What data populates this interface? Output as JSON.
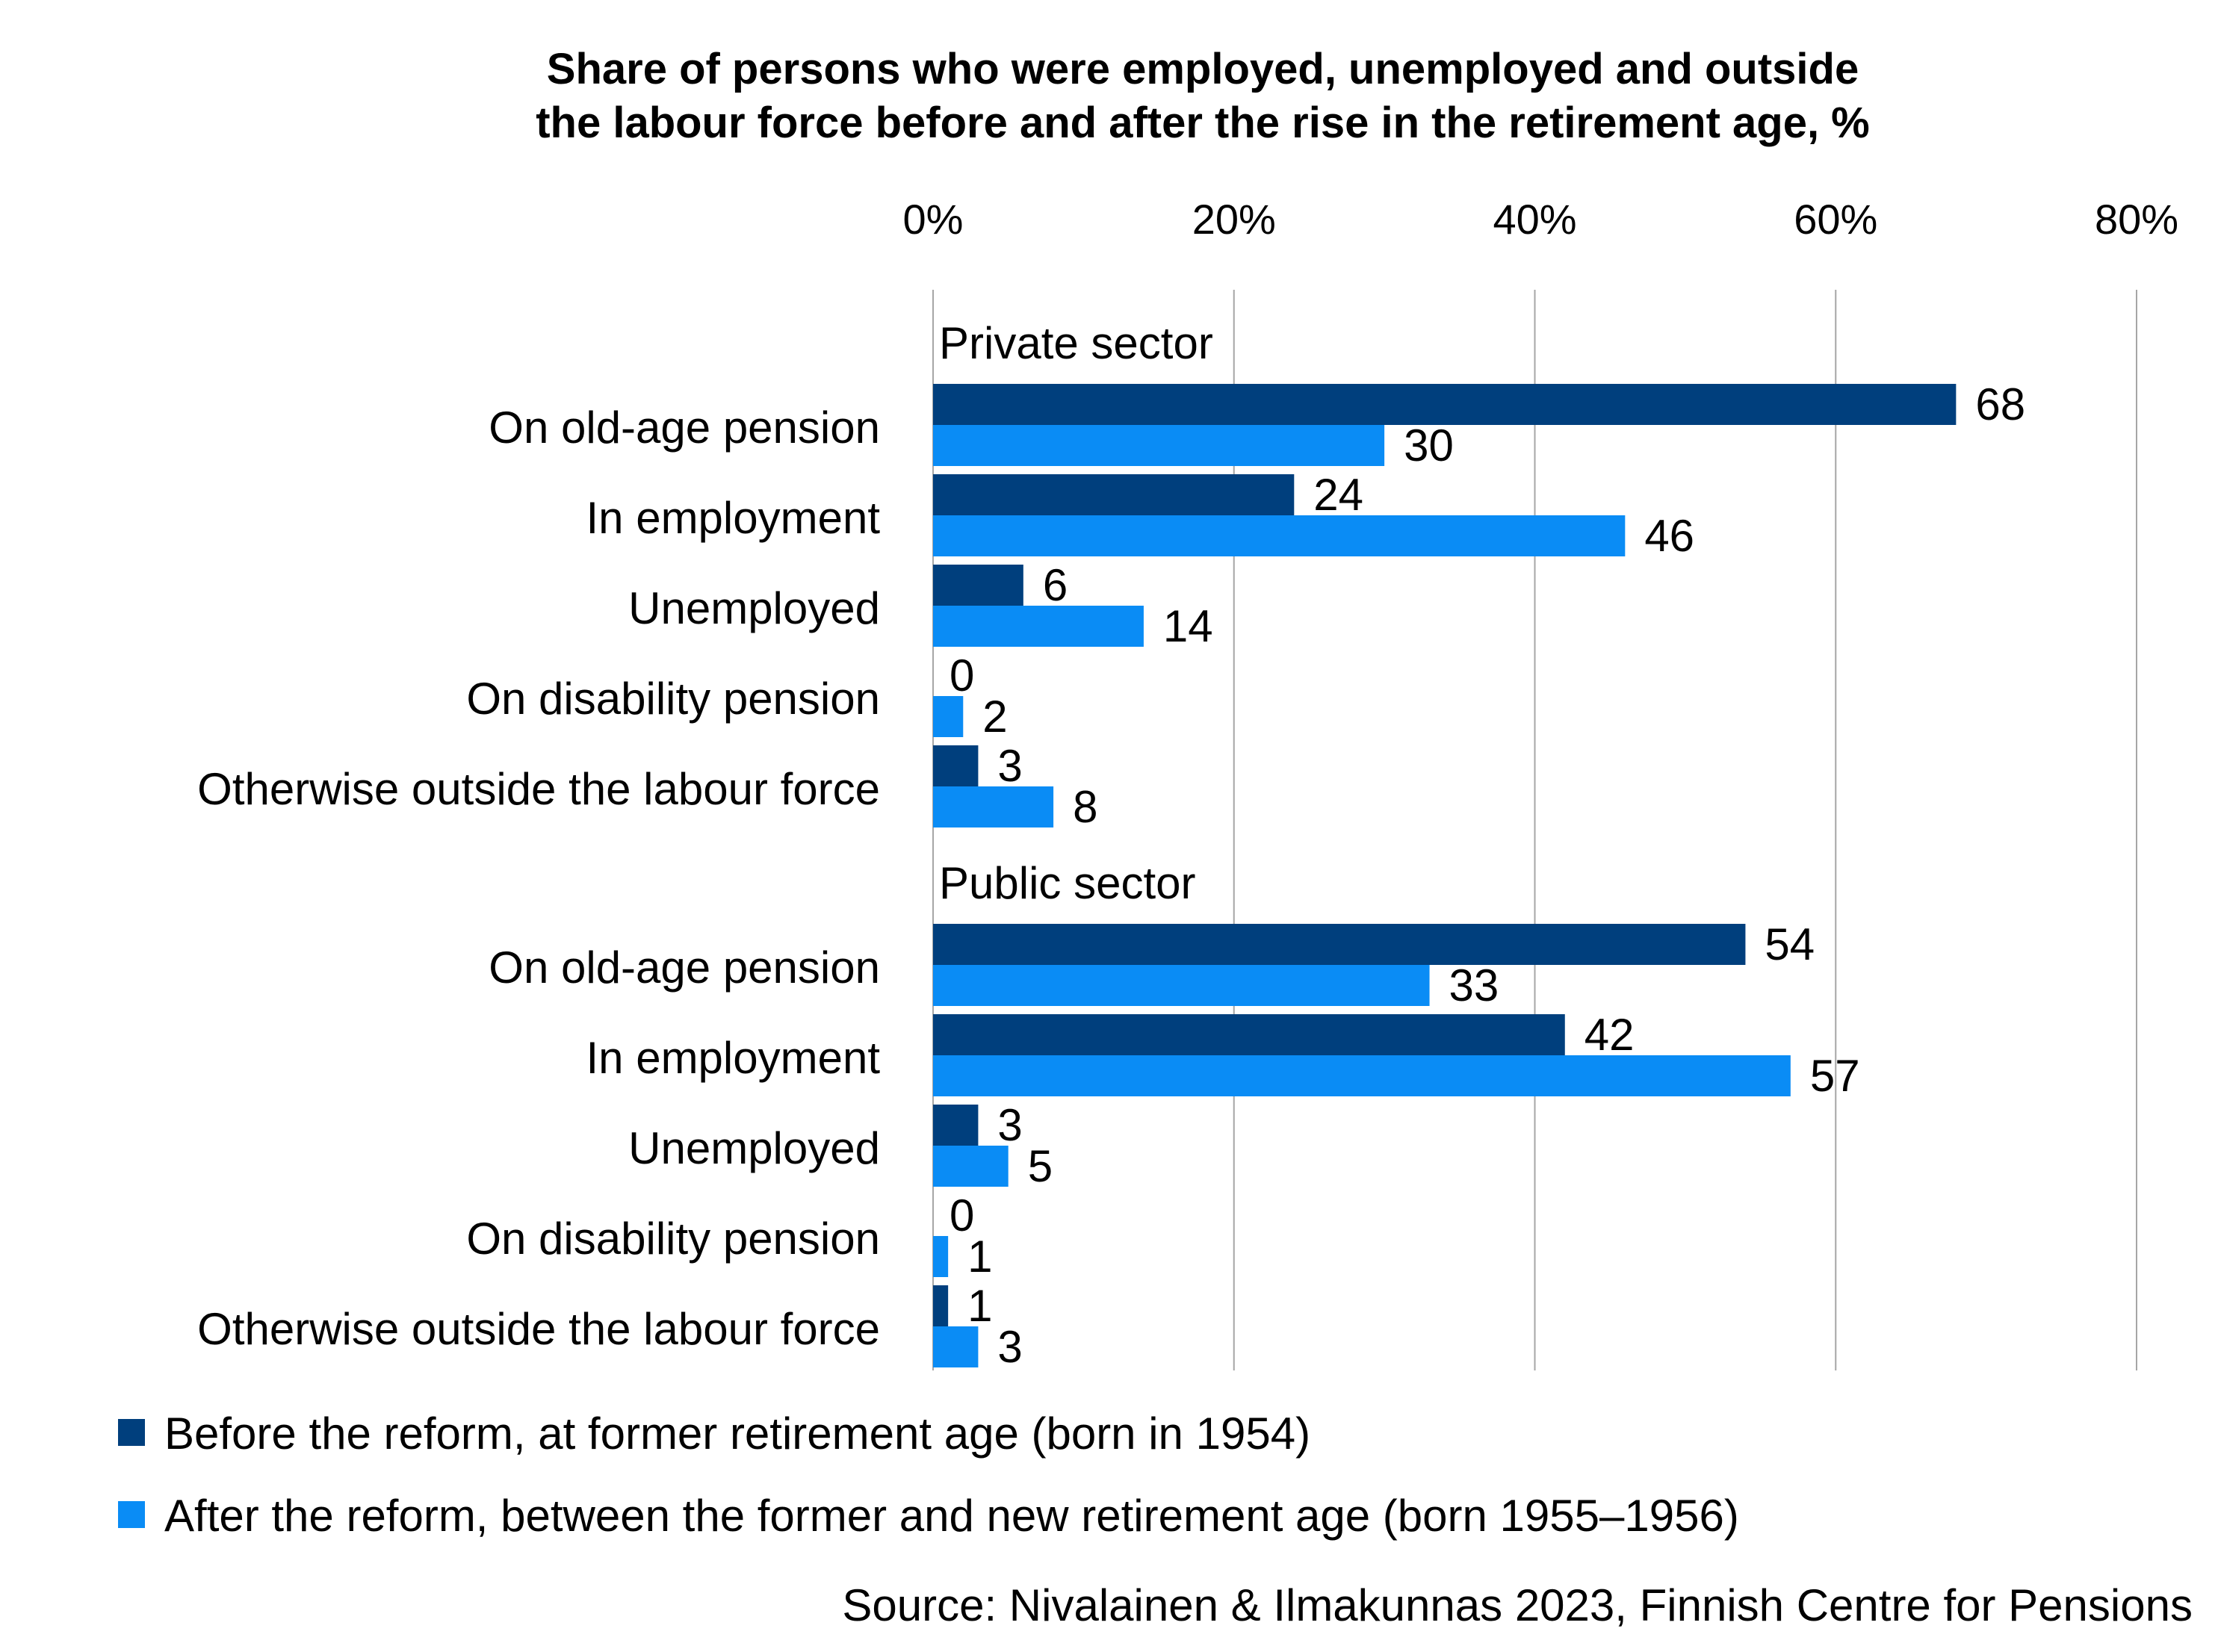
{
  "chart_data": {
    "type": "bar",
    "orientation": "horizontal",
    "title": "Share of persons who were employed, unemployed and outside the labour force before and after the rise in the retirement age, %",
    "title_lines": [
      "Share of persons who were employed, unemployed and outside",
      "the labour force before and after the rise in the retirement age, %"
    ],
    "xlim": [
      0,
      80
    ],
    "x_ticks": [
      "0%",
      "20%",
      "40%",
      "60%",
      "80%"
    ],
    "x_tick_values": [
      0,
      20,
      40,
      60,
      80
    ],
    "gridlines": true,
    "legend_position": "bottom-left",
    "categories": [
      "On old-age pension",
      "In employment",
      "Unemployed",
      "On disability pension",
      "Otherwise outside the labour force"
    ],
    "groups": [
      {
        "name": "Private sector",
        "series": [
          {
            "name": "Before the reform, at former retirement age (born in 1954)",
            "values": [
              68,
              24,
              6,
              0,
              3
            ]
          },
          {
            "name": "After the reform, between the former and new retirement age (born 1955–1956)",
            "values": [
              30,
              46,
              14,
              2,
              8
            ]
          }
        ]
      },
      {
        "name": "Public sector",
        "series": [
          {
            "name": "Before the reform, at former retirement age (born in 1954)",
            "values": [
              54,
              42,
              3,
              0,
              1
            ]
          },
          {
            "name": "After the reform, between the former and new retirement age (born 1955–1956)",
            "values": [
              33,
              57,
              5,
              1,
              3
            ]
          }
        ]
      }
    ],
    "legend": [
      "Before the reform, at former retirement age (born in 1954)",
      "After the reform, between the former and new retirement age (born 1955–1956)"
    ],
    "colors": [
      "#003F7D",
      "#0A8CF5"
    ],
    "source": "Source: Nivalainen & Ilmakunnas 2023, Finnish Centre for Pensions"
  }
}
